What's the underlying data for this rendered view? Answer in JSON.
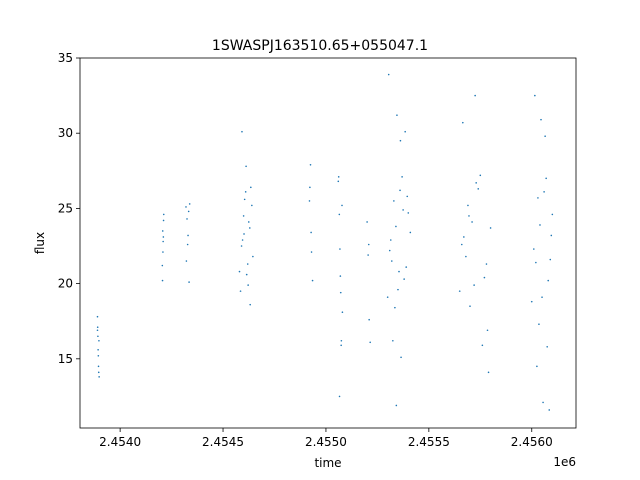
{
  "chart_data": {
    "type": "scatter",
    "title": "1SWASPJ163510.65+055047.1",
    "xlabel": "time",
    "ylabel": "flux",
    "x_offset_label": "1e6",
    "xlim": [
      2453805,
      2456215
    ],
    "ylim": [
      10.4,
      35
    ],
    "x_ticks": [
      2.454,
      2.4545,
      2.455,
      2.4555,
      2.456
    ],
    "x_tick_labels": [
      "2.4540",
      "2.4545",
      "2.4550",
      "2.4555",
      "2.4560"
    ],
    "y_ticks": [
      15,
      20,
      25,
      30,
      35
    ],
    "y_tick_labels": [
      "15",
      "20",
      "25",
      "30",
      "35"
    ],
    "grid": false,
    "point_color": "#1f77b4",
    "series": [
      {
        "x": [
          2453890,
          2453892,
          2453894,
          2453896,
          2453898,
          2453890,
          2453893,
          2453895,
          2453897,
          2453891,
          2454205,
          2454207,
          2454209,
          2454211,
          2454206,
          2454208,
          2454210,
          2454212,
          2454320,
          2454325,
          2454330,
          2454335,
          2454322,
          2454328,
          2454333,
          2454338,
          2454580,
          2454590,
          2454600,
          2454610,
          2454620,
          2454630,
          2454640,
          2454585,
          2454595,
          2454605,
          2454615,
          2454625,
          2454635,
          2454645,
          2454592,
          2454612,
          2454632,
          2454602,
          2454622,
          2454920,
          2454925,
          2454930,
          2454935,
          2454922,
          2454928,
          2455060,
          2455065,
          2455070,
          2455075,
          2455080,
          2455062,
          2455068,
          2455072,
          2455078,
          2455066,
          2455074,
          2455200,
          2455210,
          2455205,
          2455215,
          2455208,
          2455300,
          2455320,
          2455340,
          2455360,
          2455380,
          2455400,
          2455310,
          2455330,
          2455350,
          2455370,
          2455390,
          2455410,
          2455305,
          2455345,
          2455385,
          2455325,
          2455365,
          2455335,
          2455375,
          2455315,
          2455355,
          2455395,
          2455342,
          2455362,
          2455650,
          2455680,
          2455710,
          2455740,
          2455770,
          2455800,
          2455660,
          2455690,
          2455720,
          2455750,
          2455780,
          2455670,
          2455700,
          2455730,
          2455760,
          2455790,
          2455665,
          2455725,
          2455785,
          2455695,
          2456000,
          2456020,
          2456040,
          2456060,
          2456080,
          2456100,
          2456010,
          2456030,
          2456050,
          2456070,
          2456090,
          2456015,
          2456045,
          2456075,
          2456025,
          2456055,
          2456085,
          2456035,
          2456065,
          2456095
        ],
        "y": [
          17.8,
          16.5,
          15.2,
          14.1,
          13.8,
          16.9,
          15.6,
          14.5,
          16.2,
          17.1,
          21.2,
          23.5,
          22.8,
          24.2,
          20.2,
          22.1,
          23.1,
          24.6,
          25.1,
          24.3,
          23.2,
          20.1,
          21.5,
          22.6,
          24.8,
          25.3,
          20.8,
          22.5,
          24.5,
          26.1,
          21.3,
          23.7,
          25.2,
          19.5,
          22.9,
          25.6,
          20.6,
          24.1,
          26.4,
          21.8,
          30.1,
          27.8,
          18.6,
          23.3,
          19.9,
          25.5,
          27.9,
          22.1,
          20.2,
          26.4,
          23.4,
          26.8,
          24.6,
          20.5,
          16.2,
          18.1,
          27.1,
          22.3,
          19.4,
          25.2,
          12.5,
          15.9,
          24.1,
          17.6,
          21.9,
          16.1,
          22.6,
          19.1,
          21.5,
          23.8,
          26.2,
          20.3,
          24.7,
          22.2,
          25.5,
          19.6,
          27.1,
          21.1,
          23.4,
          33.9,
          31.2,
          30.1,
          16.2,
          15.1,
          18.4,
          24.9,
          22.9,
          20.8,
          25.8,
          11.9,
          29.5,
          19.5,
          21.8,
          24.1,
          26.3,
          20.4,
          23.7,
          22.6,
          25.2,
          19.9,
          27.2,
          21.3,
          23.1,
          18.5,
          26.7,
          15.9,
          14.1,
          30.7,
          32.5,
          16.9,
          24.5,
          18.8,
          21.4,
          23.9,
          26.1,
          20.2,
          24.6,
          22.3,
          25.7,
          19.1,
          27.0,
          21.6,
          32.5,
          30.9,
          15.8,
          14.5,
          12.1,
          11.6,
          17.3,
          29.8,
          23.2
        ]
      }
    ]
  }
}
